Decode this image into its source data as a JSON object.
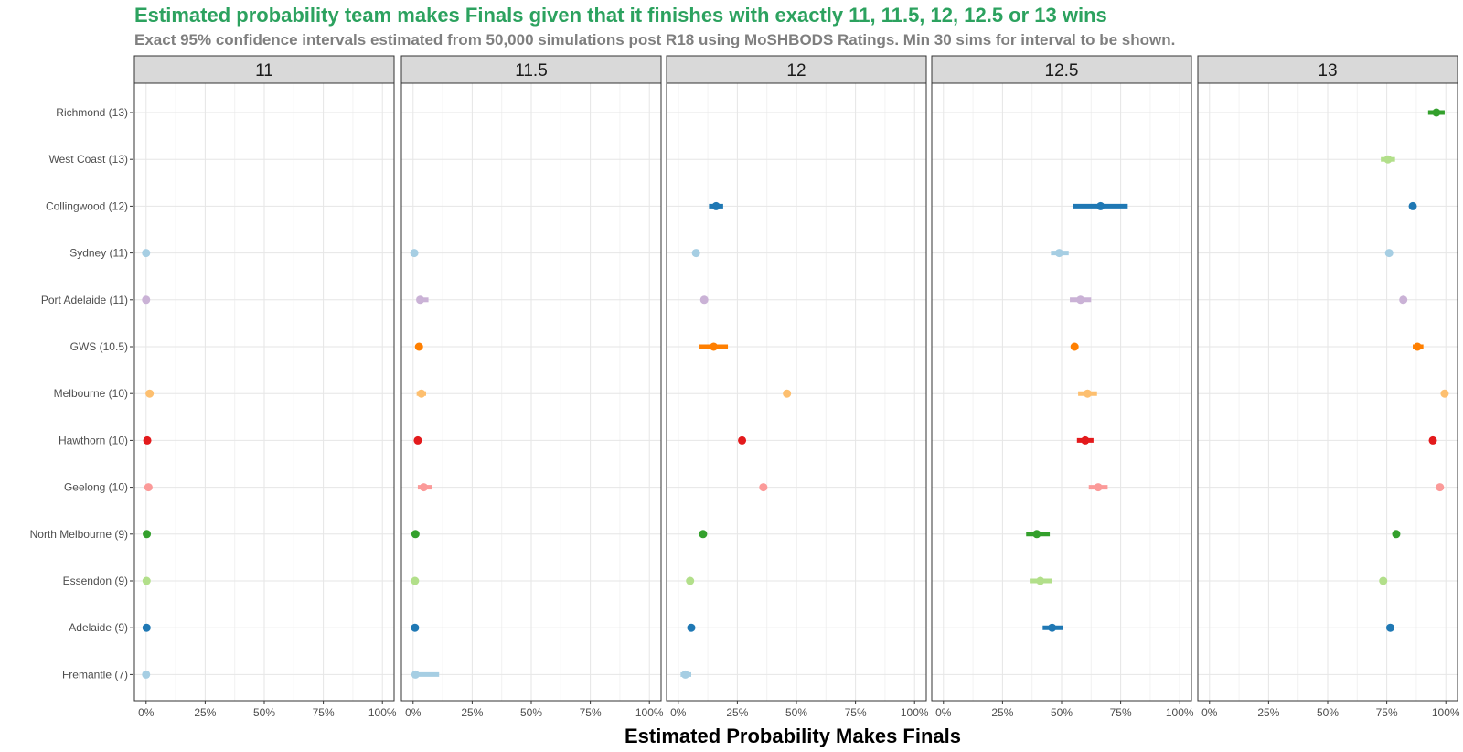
{
  "chart_data": {
    "type": "scatter",
    "title": "Estimated probability team makes Finals given that it finishes with exactly 11, 11.5, 12, 12.5 or 13 wins",
    "subtitle": "Exact 95% confidence intervals estimated from 50,000 simulations post R18 using MoSHBODS Ratings. Min 30 sims for interval to be shown.",
    "xlabel": "Estimated Probability Makes Finals",
    "ylabel": "",
    "xlim": [
      0,
      1
    ],
    "x_ticks": [
      "0%",
      "25%",
      "50%",
      "75%",
      "100%"
    ],
    "grid": true,
    "legend": "none",
    "facets": [
      "11",
      "11.5",
      "12",
      "12.5",
      "13"
    ],
    "teams": [
      {
        "name": "Richmond (13)",
        "color": "#33a02c"
      },
      {
        "name": "West Coast (13)",
        "color": "#b2df8a"
      },
      {
        "name": "Collingwood (12)",
        "color": "#1f78b4"
      },
      {
        "name": "Sydney (11)",
        "color": "#a6cee3"
      },
      {
        "name": "Port Adelaide (11)",
        "color": "#cab2d6"
      },
      {
        "name": "GWS (10.5)",
        "color": "#ff7f00"
      },
      {
        "name": "Melbourne (10)",
        "color": "#fdbf6f"
      },
      {
        "name": "Hawthorn (10)",
        "color": "#e31a1c"
      },
      {
        "name": "Geelong (10)",
        "color": "#fb9a99"
      },
      {
        "name": "North Melbourne (9)",
        "color": "#33a02c"
      },
      {
        "name": "Essendon (9)",
        "color": "#b2df8a"
      },
      {
        "name": "Adelaide (9)",
        "color": "#1f78b4"
      },
      {
        "name": "Fremantle (7)",
        "color": "#a6cee3"
      }
    ],
    "points": [
      {
        "facet": "11",
        "team": "Sydney (11)",
        "p": 0.0,
        "lo": 0.0,
        "hi": 0.005
      },
      {
        "facet": "11",
        "team": "Port Adelaide (11)",
        "p": 0.0,
        "lo": 0.0,
        "hi": 0.005
      },
      {
        "facet": "11",
        "team": "Melbourne (10)",
        "p": 0.015,
        "lo": 0.005,
        "hi": 0.025
      },
      {
        "facet": "11",
        "team": "Hawthorn (10)",
        "p": 0.005,
        "lo": 0.0,
        "hi": 0.01
      },
      {
        "facet": "11",
        "team": "Geelong (10)",
        "p": 0.01,
        "lo": 0.003,
        "hi": 0.02
      },
      {
        "facet": "11",
        "team": "North Melbourne (9)",
        "p": 0.003,
        "lo": 0.0,
        "hi": 0.008
      },
      {
        "facet": "11",
        "team": "Essendon (9)",
        "p": 0.002,
        "lo": 0.0,
        "hi": 0.006
      },
      {
        "facet": "11",
        "team": "Adelaide (9)",
        "p": 0.002,
        "lo": 0.0,
        "hi": 0.006
      },
      {
        "facet": "11",
        "team": "Fremantle (7)",
        "p": 0.0,
        "lo": 0.0,
        "hi": 0.005
      },
      {
        "facet": "11.5",
        "team": "Sydney (11)",
        "p": 0.005,
        "lo": 0.0,
        "hi": 0.012
      },
      {
        "facet": "11.5",
        "team": "Port Adelaide (11)",
        "p": 0.03,
        "lo": 0.015,
        "hi": 0.065
      },
      {
        "facet": "11.5",
        "team": "GWS (10.5)",
        "p": 0.025,
        "lo": 0.015,
        "hi": 0.035
      },
      {
        "facet": "11.5",
        "team": "Melbourne (10)",
        "p": 0.035,
        "lo": 0.015,
        "hi": 0.055
      },
      {
        "facet": "11.5",
        "team": "Hawthorn (10)",
        "p": 0.02,
        "lo": 0.012,
        "hi": 0.03
      },
      {
        "facet": "11.5",
        "team": "Geelong (10)",
        "p": 0.045,
        "lo": 0.02,
        "hi": 0.08
      },
      {
        "facet": "11.5",
        "team": "North Melbourne (9)",
        "p": 0.01,
        "lo": 0.004,
        "hi": 0.018
      },
      {
        "facet": "11.5",
        "team": "Essendon (9)",
        "p": 0.008,
        "lo": 0.002,
        "hi": 0.016
      },
      {
        "facet": "11.5",
        "team": "Adelaide (9)",
        "p": 0.008,
        "lo": 0.002,
        "hi": 0.016
      },
      {
        "facet": "11.5",
        "team": "Fremantle (7)",
        "p": 0.01,
        "lo": 0.0,
        "hi": 0.11
      },
      {
        "facet": "12",
        "team": "Collingwood (12)",
        "p": 0.16,
        "lo": 0.13,
        "hi": 0.19
      },
      {
        "facet": "12",
        "team": "Sydney (11)",
        "p": 0.075,
        "lo": 0.065,
        "hi": 0.085
      },
      {
        "facet": "12",
        "team": "Port Adelaide (11)",
        "p": 0.11,
        "lo": 0.1,
        "hi": 0.12
      },
      {
        "facet": "12",
        "team": "GWS (10.5)",
        "p": 0.15,
        "lo": 0.09,
        "hi": 0.21
      },
      {
        "facet": "12",
        "team": "Melbourne (10)",
        "p": 0.46,
        "lo": 0.45,
        "hi": 0.47
      },
      {
        "facet": "12",
        "team": "Hawthorn (10)",
        "p": 0.27,
        "lo": 0.26,
        "hi": 0.28
      },
      {
        "facet": "12",
        "team": "Geelong (10)",
        "p": 0.36,
        "lo": 0.35,
        "hi": 0.37
      },
      {
        "facet": "12",
        "team": "North Melbourne (9)",
        "p": 0.105,
        "lo": 0.095,
        "hi": 0.115
      },
      {
        "facet": "12",
        "team": "Essendon (9)",
        "p": 0.05,
        "lo": 0.04,
        "hi": 0.06
      },
      {
        "facet": "12",
        "team": "Adelaide (9)",
        "p": 0.055,
        "lo": 0.045,
        "hi": 0.065
      },
      {
        "facet": "12",
        "team": "Fremantle (7)",
        "p": 0.03,
        "lo": 0.01,
        "hi": 0.055
      },
      {
        "facet": "12.5",
        "team": "Collingwood (12)",
        "p": 0.665,
        "lo": 0.55,
        "hi": 0.78
      },
      {
        "facet": "12.5",
        "team": "Sydney (11)",
        "p": 0.49,
        "lo": 0.455,
        "hi": 0.53
      },
      {
        "facet": "12.5",
        "team": "Port Adelaide (11)",
        "p": 0.58,
        "lo": 0.535,
        "hi": 0.625
      },
      {
        "facet": "12.5",
        "team": "GWS (10.5)",
        "p": 0.555,
        "lo": 0.545,
        "hi": 0.565
      },
      {
        "facet": "12.5",
        "team": "Melbourne (10)",
        "p": 0.61,
        "lo": 0.57,
        "hi": 0.65
      },
      {
        "facet": "12.5",
        "team": "Hawthorn (10)",
        "p": 0.6,
        "lo": 0.565,
        "hi": 0.635
      },
      {
        "facet": "12.5",
        "team": "Geelong (10)",
        "p": 0.655,
        "lo": 0.615,
        "hi": 0.695
      },
      {
        "facet": "12.5",
        "team": "North Melbourne (9)",
        "p": 0.395,
        "lo": 0.35,
        "hi": 0.45
      },
      {
        "facet": "12.5",
        "team": "Essendon (9)",
        "p": 0.41,
        "lo": 0.365,
        "hi": 0.46
      },
      {
        "facet": "12.5",
        "team": "Adelaide (9)",
        "p": 0.46,
        "lo": 0.42,
        "hi": 0.505
      },
      {
        "facet": "13",
        "team": "Richmond (13)",
        "p": 0.96,
        "lo": 0.925,
        "hi": 0.995
      },
      {
        "facet": "13",
        "team": "West Coast (13)",
        "p": 0.755,
        "lo": 0.725,
        "hi": 0.785
      },
      {
        "facet": "13",
        "team": "Collingwood (12)",
        "p": 0.86,
        "lo": 0.85,
        "hi": 0.87
      },
      {
        "facet": "13",
        "team": "Sydney (11)",
        "p": 0.76,
        "lo": 0.75,
        "hi": 0.77
      },
      {
        "facet": "13",
        "team": "Port Adelaide (11)",
        "p": 0.82,
        "lo": 0.81,
        "hi": 0.83
      },
      {
        "facet": "13",
        "team": "GWS (10.5)",
        "p": 0.88,
        "lo": 0.86,
        "hi": 0.905
      },
      {
        "facet": "13",
        "team": "Melbourne (10)",
        "p": 0.995,
        "lo": 0.99,
        "hi": 1.0
      },
      {
        "facet": "13",
        "team": "Hawthorn (10)",
        "p": 0.945,
        "lo": 0.935,
        "hi": 0.955
      },
      {
        "facet": "13",
        "team": "Geelong (10)",
        "p": 0.975,
        "lo": 0.965,
        "hi": 0.985
      },
      {
        "facet": "13",
        "team": "North Melbourne (9)",
        "p": 0.79,
        "lo": 0.78,
        "hi": 0.8
      },
      {
        "facet": "13",
        "team": "Essendon (9)",
        "p": 0.735,
        "lo": 0.725,
        "hi": 0.745
      },
      {
        "facet": "13",
        "team": "Adelaide (9)",
        "p": 0.765,
        "lo": 0.755,
        "hi": 0.775
      }
    ]
  }
}
